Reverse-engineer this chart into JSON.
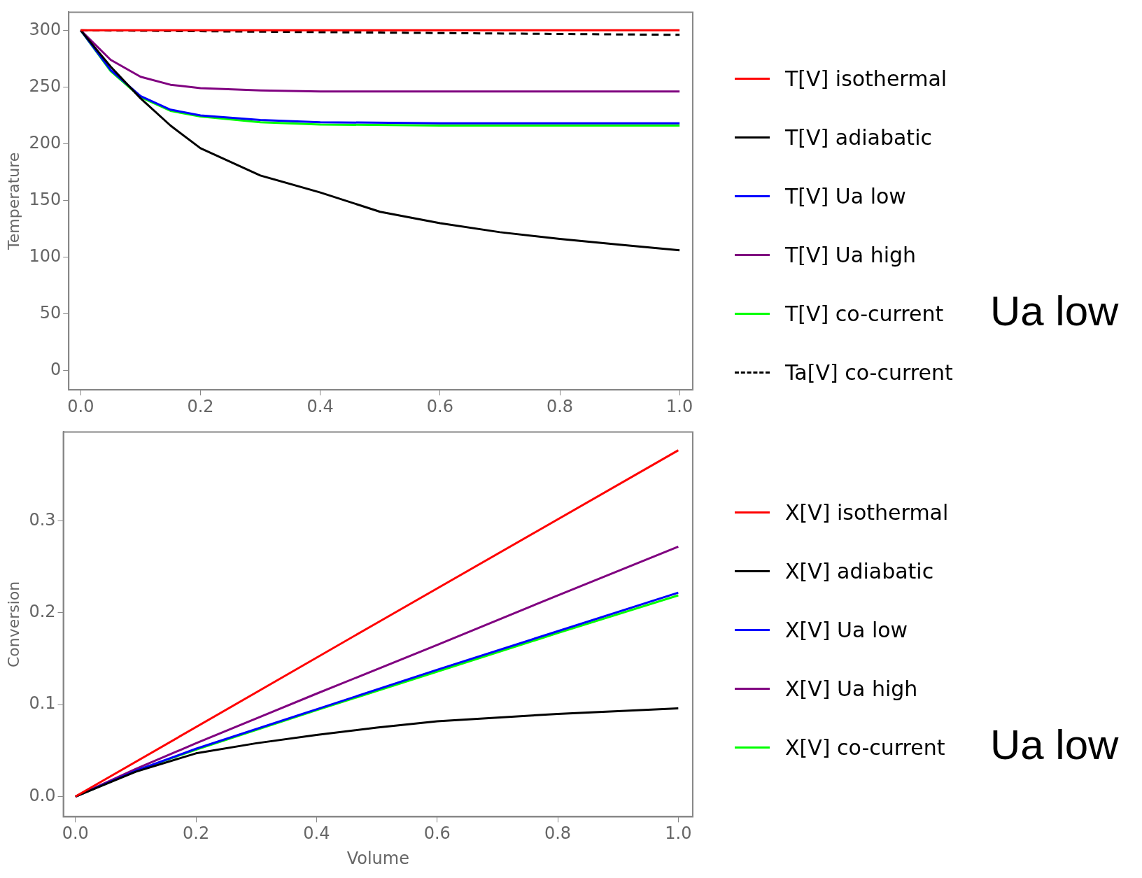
{
  "chart_data": [
    {
      "type": "line",
      "ylabel": "Temperature",
      "xlim": [
        -0.02,
        1.022
      ],
      "ylim": [
        -17,
        316
      ],
      "xticks": [
        {
          "value": 0,
          "label": "0.0"
        },
        {
          "value": 0.2,
          "label": "0.2"
        },
        {
          "value": 0.4,
          "label": "0.4"
        },
        {
          "value": 0.6,
          "label": "0.6"
        },
        {
          "value": 0.8,
          "label": "0.8"
        },
        {
          "value": 1,
          "label": "1.0"
        }
      ],
      "yticks": [
        0,
        50,
        100,
        150,
        200,
        250,
        300
      ],
      "grid": false,
      "legend": "right",
      "marker": "none",
      "annotations": [
        "Ua low"
      ],
      "series": [
        {
          "name": "T[V] isothermal",
          "color": "#ff0000",
          "x": [
            0,
            0.5,
            1
          ],
          "values": [
            300,
            300,
            300
          ]
        },
        {
          "name": "T[V] adiabatic",
          "color": "#000000",
          "x": [
            0,
            0.05,
            0.1,
            0.15,
            0.2,
            0.3,
            0.4,
            0.5,
            0.6,
            0.7,
            0.8,
            0.9,
            1
          ],
          "values": [
            300,
            268,
            240,
            216,
            196,
            172,
            157,
            140,
            130,
            122,
            116,
            111,
            106
          ]
        },
        {
          "name": "T[V] Ua low",
          "color": "#0000ff",
          "x": [
            0,
            0.05,
            0.1,
            0.15,
            0.2,
            0.3,
            0.4,
            0.6,
            0.8,
            1
          ],
          "values": [
            300,
            265,
            242,
            230,
            225,
            221,
            219,
            218,
            218,
            218
          ]
        },
        {
          "name": "T[V] Ua high",
          "color": "#800080",
          "x": [
            0,
            0.05,
            0.1,
            0.15,
            0.2,
            0.3,
            0.4,
            0.6,
            0.8,
            1
          ],
          "values": [
            300,
            274,
            259,
            252,
            249,
            247,
            246,
            246,
            246,
            246
          ]
        },
        {
          "name": "T[V] co-current",
          "color": "#00ff00",
          "x": [
            0,
            0.05,
            0.1,
            0.15,
            0.2,
            0.3,
            0.4,
            0.6,
            0.8,
            1
          ],
          "values": [
            300,
            264,
            241,
            229,
            224,
            219,
            217,
            216,
            216,
            216
          ]
        },
        {
          "name": "Ta[V] co-current",
          "color": "#000000",
          "line_style": "dashed",
          "x": [
            0,
            0.5,
            1
          ],
          "values": [
            300,
            298,
            296
          ]
        }
      ]
    },
    {
      "type": "line",
      "xlabel": "Volume",
      "ylabel": "Conversion",
      "xlim": [
        -0.02,
        1.024
      ],
      "ylim": [
        -0.022,
        0.397
      ],
      "xticks": [
        {
          "value": 0,
          "label": "0.0"
        },
        {
          "value": 0.2,
          "label": "0.2"
        },
        {
          "value": 0.4,
          "label": "0.4"
        },
        {
          "value": 0.6,
          "label": "0.6"
        },
        {
          "value": 0.8,
          "label": "0.8"
        },
        {
          "value": 1,
          "label": "1.0"
        }
      ],
      "yticks": [
        {
          "value": 0,
          "label": "0.0"
        },
        0.1,
        0.2,
        0.3
      ],
      "grid": false,
      "legend": "right",
      "marker": "none",
      "annotations": [
        "Ua low"
      ],
      "series": [
        {
          "name": "X[V] isothermal",
          "color": "#ff0000",
          "x": [
            0,
            0.5,
            1
          ],
          "values": [
            0,
            0.189,
            0.377
          ]
        },
        {
          "name": "X[V] adiabatic",
          "color": "#000000",
          "x": [
            0,
            0.1,
            0.2,
            0.3,
            0.4,
            0.5,
            0.6,
            0.7,
            0.8,
            0.9,
            1
          ],
          "values": [
            0,
            0.027,
            0.047,
            0.058,
            0.067,
            0.075,
            0.082,
            0.086,
            0.09,
            0.093,
            0.096
          ]
        },
        {
          "name": "X[V] Ua low",
          "color": "#0000ff",
          "x": [
            0,
            0.1,
            0.2,
            0.4,
            0.6,
            0.8,
            1
          ],
          "values": [
            0,
            0.028,
            0.052,
            0.095,
            0.138,
            0.18,
            0.222
          ]
        },
        {
          "name": "X[V] Ua high",
          "color": "#800080",
          "x": [
            0,
            0.1,
            0.2,
            0.4,
            0.6,
            0.8,
            1
          ],
          "values": [
            0,
            0.03,
            0.058,
            0.112,
            0.165,
            0.219,
            0.272
          ]
        },
        {
          "name": "X[V] co-current",
          "color": "#00ff00",
          "x": [
            0,
            0.1,
            0.2,
            0.4,
            0.6,
            0.8,
            1
          ],
          "values": [
            0,
            0.028,
            0.051,
            0.094,
            0.136,
            0.178,
            0.219
          ]
        }
      ]
    }
  ]
}
